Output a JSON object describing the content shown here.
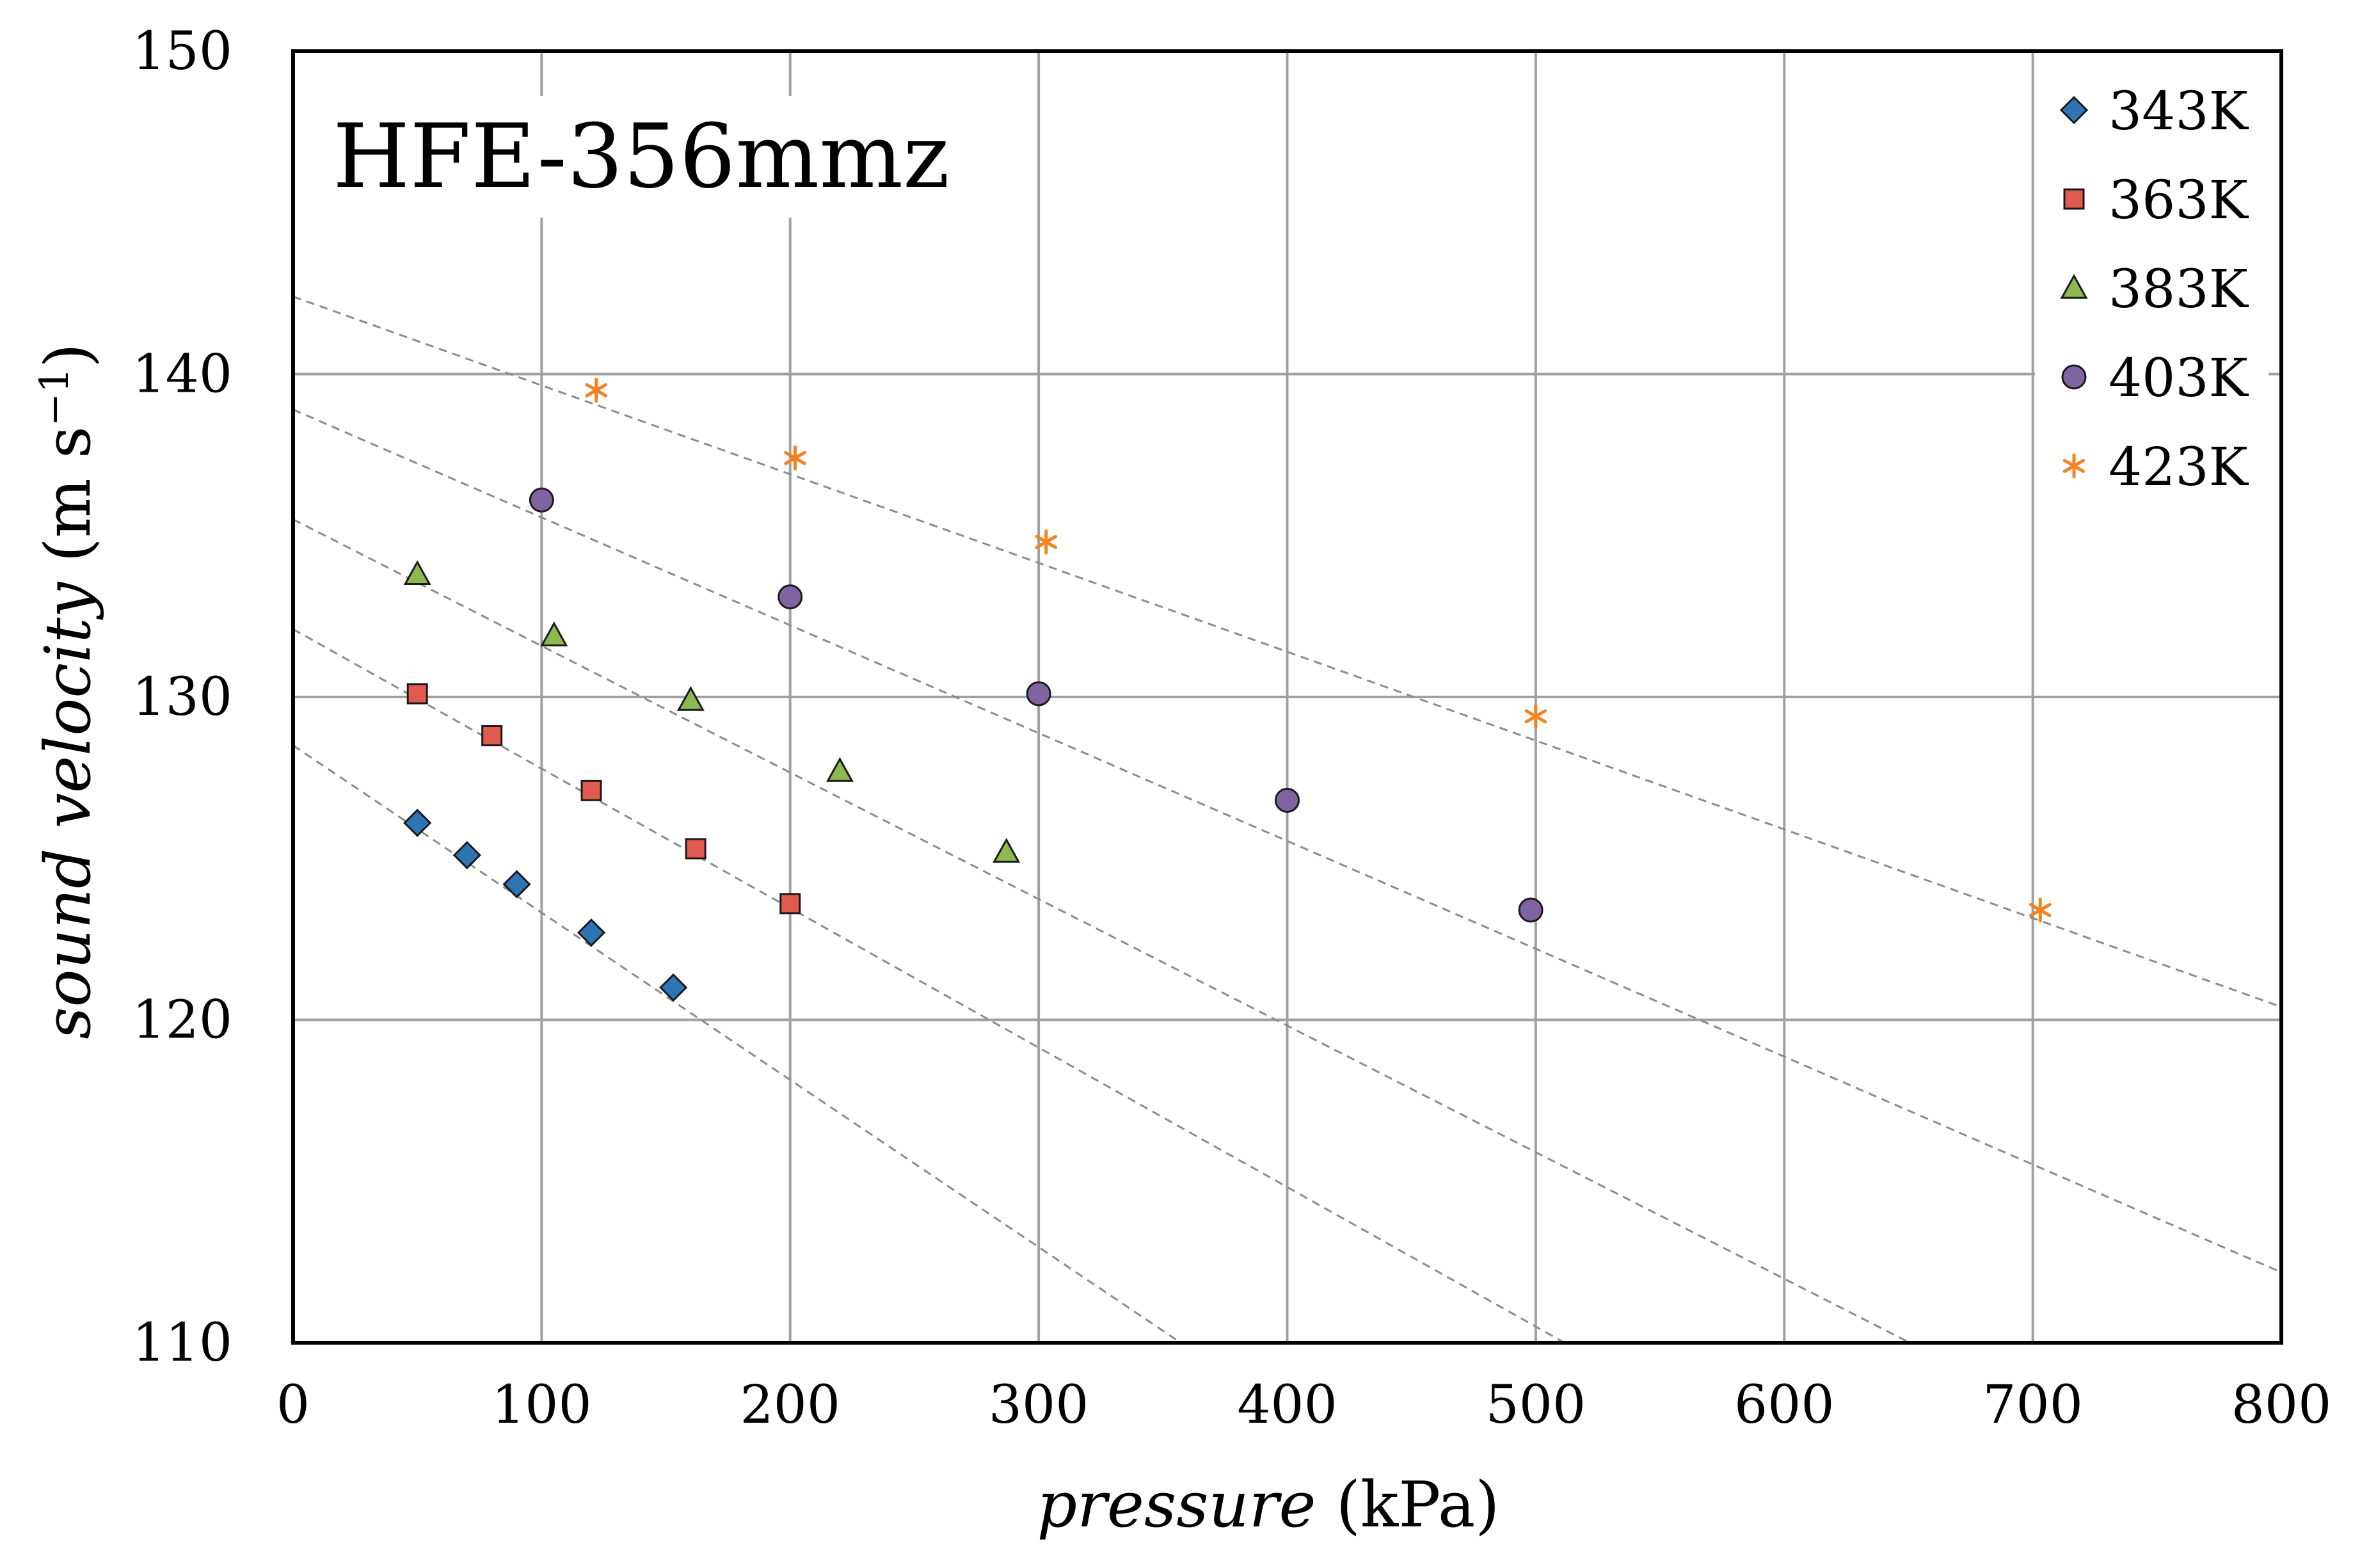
{
  "chart_data": {
    "type": "scatter",
    "title": "HFE-356mmz",
    "xlabel_italic": "pressure",
    "xlabel_unit": "(kPa)",
    "ylabel_italic": "sound velocity",
    "ylabel_unit_prefix": "(m s",
    "ylabel_unit_exp": "−1",
    "ylabel_unit_suffix": ")",
    "xlim": [
      0,
      800
    ],
    "ylim": [
      110,
      150
    ],
    "xticks": [
      0,
      100,
      200,
      300,
      400,
      500,
      600,
      700,
      800
    ],
    "yticks": [
      110,
      120,
      130,
      140,
      150
    ],
    "grid": true,
    "legend_position": "top-right",
    "series": [
      {
        "name": "343K",
        "marker": "diamond",
        "color": "#2E75B6",
        "x": [
          50,
          70,
          90,
          120,
          153
        ],
        "y": [
          126.1,
          125.1,
          124.2,
          122.7,
          121.0
        ],
        "fit": {
          "intercept": 128.5,
          "slope": -0.0518
        }
      },
      {
        "name": "363K",
        "marker": "square",
        "color": "#E05A50",
        "x": [
          50,
          80,
          120,
          162,
          200
        ],
        "y": [
          130.1,
          128.8,
          127.1,
          125.3,
          123.6
        ],
        "fit": {
          "intercept": 132.1,
          "slope": -0.0432
        }
      },
      {
        "name": "383K",
        "marker": "triangle",
        "color": "#8DB852",
        "x": [
          50,
          105,
          160,
          220,
          287
        ],
        "y": [
          133.8,
          131.9,
          129.9,
          127.7,
          125.2
        ],
        "fit": {
          "intercept": 135.5,
          "slope": -0.0392
        }
      },
      {
        "name": "403K",
        "marker": "circle",
        "color": "#8064A2",
        "x": [
          100,
          200,
          300,
          400,
          498
        ],
        "y": [
          136.1,
          133.1,
          130.1,
          126.8,
          123.4
        ],
        "fit": {
          "intercept": 138.9,
          "slope": -0.0334
        }
      },
      {
        "name": "423K",
        "marker": "asterisk",
        "color": "#F58220",
        "x": [
          122,
          202,
          303,
          500,
          703
        ],
        "y": [
          139.5,
          137.4,
          134.8,
          129.4,
          123.4
        ],
        "fit": {
          "intercept": 142.4,
          "slope": -0.0275
        }
      }
    ]
  }
}
